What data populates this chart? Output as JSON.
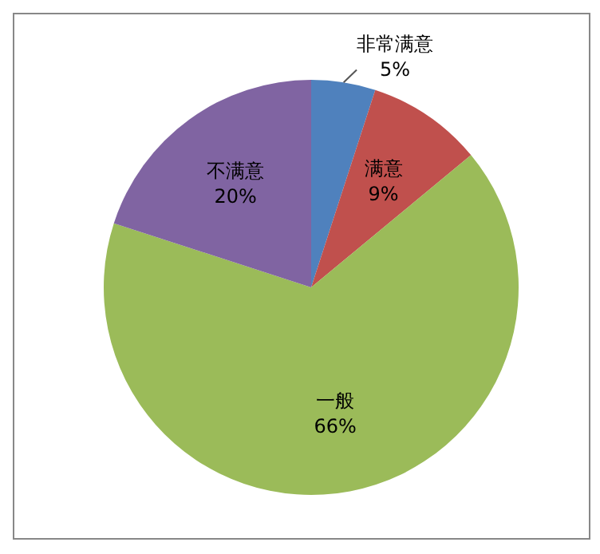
{
  "chart_data": {
    "type": "pie",
    "categories": [
      "非常满意",
      "满意",
      "一般",
      "不满意"
    ],
    "values": [
      5,
      9,
      66,
      20
    ],
    "value_labels": [
      "5%",
      "9%",
      "66%",
      "20%"
    ],
    "colors": [
      "#4f81bd",
      "#c0504d",
      "#9bbb59",
      "#8064a2"
    ],
    "legend": false
  }
}
